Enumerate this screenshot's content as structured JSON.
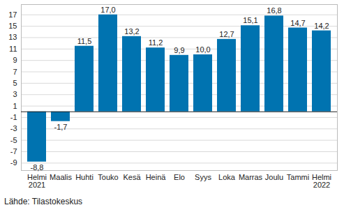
{
  "chart_data": {
    "type": "bar",
    "categories": [
      "Helmi\n2021",
      "Maalis",
      "Huhti",
      "Touko",
      "Kesä",
      "Heinä",
      "Elo",
      "Syys",
      "Loka",
      "Marras",
      "Joulu",
      "Tammi",
      "Helmi\n2022"
    ],
    "values": [
      -8.8,
      -1.7,
      11.5,
      17.0,
      13.2,
      11.2,
      9.9,
      10.0,
      12.7,
      15.1,
      16.8,
      14.7,
      14.2
    ],
    "value_labels": [
      "-8,8",
      "-1,7",
      "11,5",
      "17,0",
      "13,2",
      "11,2",
      "9,9",
      "10,0",
      "12,7",
      "15,1",
      "16,8",
      "14,7",
      "14,2"
    ],
    "data_labels": true,
    "color": "#0073b0",
    "ylim": [
      -10.3,
      18.8
    ],
    "yticks": [
      -9,
      -7,
      -5,
      -3,
      -1,
      1,
      3,
      5,
      7,
      9,
      11,
      13,
      15,
      17
    ],
    "grid": true,
    "caption": "Lähde: Tilastokeskus"
  }
}
